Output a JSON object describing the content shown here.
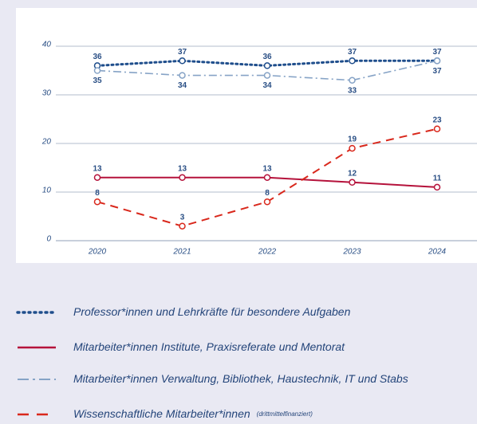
{
  "chart_data": {
    "type": "line",
    "categories": [
      "2020",
      "2021",
      "2022",
      "2023",
      "2024"
    ],
    "ylim": [
      0,
      40
    ],
    "yticks": [
      0,
      10,
      20,
      30,
      40
    ],
    "grid": true,
    "series": [
      {
        "name": "Professor*innen und  Lehrkräfte für besondere Aufgaben",
        "color": "#1f4e8c",
        "dash": "dotted",
        "values": [
          36,
          37,
          36,
          37,
          37
        ]
      },
      {
        "name": "Mitarbeiter*innen Institute, Praxisreferate und Mentorat",
        "color": "#b5123b",
        "dash": "solid",
        "values": [
          13,
          13,
          13,
          12,
          11
        ]
      },
      {
        "name": "Mitarbeiter*innen Verwaltung, Bibliothek, Haustechnik, IT und Stabs",
        "color": "#86a3c6",
        "dash": "dashdot",
        "values": [
          35,
          34,
          34,
          33,
          37
        ]
      },
      {
        "name": "Wissenschaftliche Mitarbeiter*innen",
        "note": "(drittmittelfinanziert)",
        "color": "#d9281c",
        "dash": "dashed",
        "values": [
          8,
          3,
          8,
          19,
          23
        ]
      }
    ]
  }
}
